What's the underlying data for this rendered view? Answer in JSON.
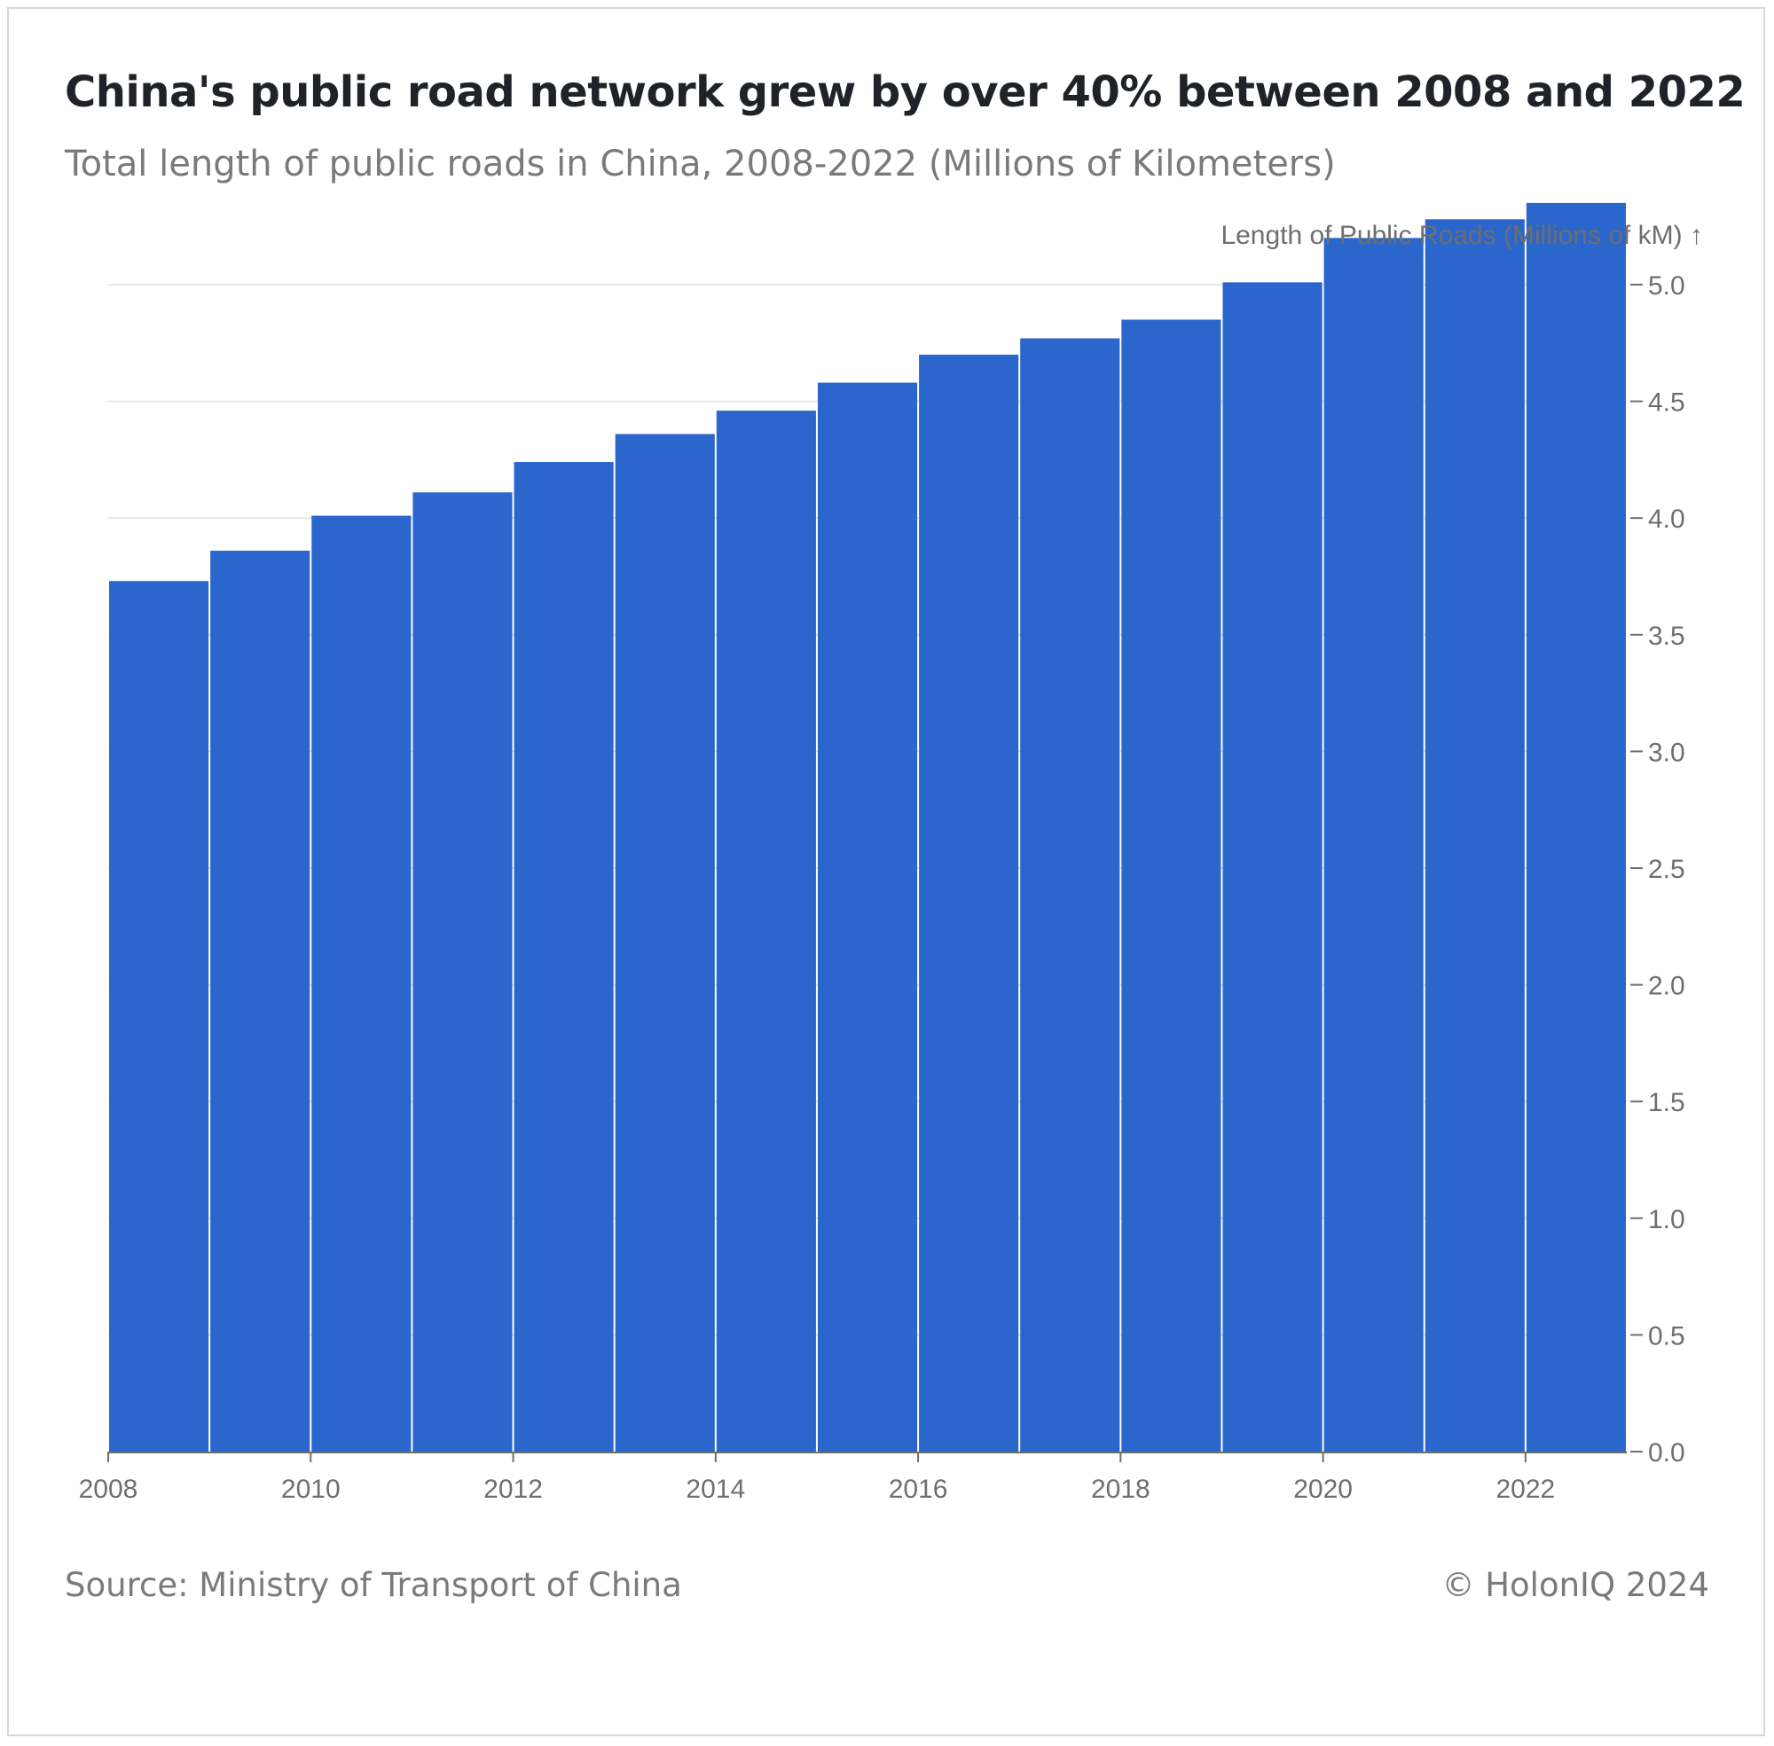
{
  "header": {
    "title": "China's public road network grew by over 40% between 2008 and 2022",
    "subtitle": "Total length of public roads in China, 2008-2022 (Millions of Kilometers)"
  },
  "footer": {
    "source": "Source: Ministry of Transport of China",
    "credit": "© HolonIQ 2024"
  },
  "chart_data": {
    "type": "bar",
    "title": "China's public road network grew by over 40% between 2008 and 2022",
    "subtitle": "Total length of public roads in China, 2008-2022 (Millions of Kilometers)",
    "xlabel": "",
    "ylabel": "Length of Public Roads (Millions of kM) ↑",
    "categories": [
      "2008",
      "2009",
      "2010",
      "2011",
      "2012",
      "2013",
      "2014",
      "2015",
      "2016",
      "2017",
      "2018",
      "2019",
      "2020",
      "2021",
      "2022"
    ],
    "values": [
      3.73,
      3.86,
      4.01,
      4.11,
      4.24,
      4.36,
      4.46,
      4.58,
      4.7,
      4.77,
      4.85,
      5.01,
      5.2,
      5.28,
      5.35
    ],
    "x_tick_labels": [
      "2008",
      "2010",
      "2012",
      "2014",
      "2016",
      "2018",
      "2020",
      "2022"
    ],
    "y_ticks": [
      "0.0",
      "0.5",
      "1.0",
      "1.5",
      "2.0",
      "2.5",
      "3.0",
      "3.5",
      "4.0",
      "4.5",
      "5.0"
    ],
    "ylim": [
      0,
      5.35
    ],
    "y_axis_side": "right",
    "grid": true,
    "bar_color": "#2b66cc"
  }
}
